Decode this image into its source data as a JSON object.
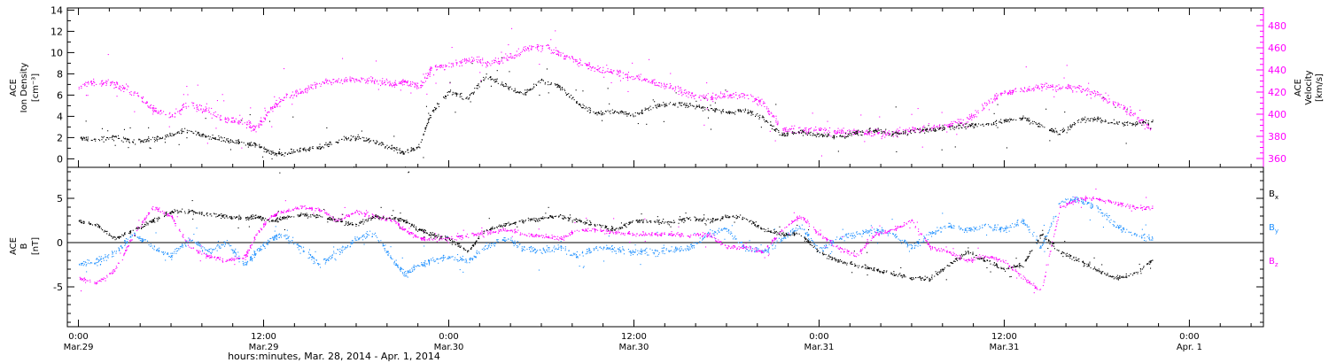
{
  "xaxis": {
    "ticks": [
      {
        "t": 0.0,
        "time": "0:00",
        "date": "Mar.29"
      },
      {
        "t": 0.5,
        "time": "12:00",
        "date": "Mar.29"
      },
      {
        "t": 1.0,
        "time": "0:00",
        "date": "Mar.30"
      },
      {
        "t": 1.5,
        "time": "12:00",
        "date": "Mar.30"
      },
      {
        "t": 2.0,
        "time": "0:00",
        "date": "Mar.31"
      },
      {
        "t": 2.5,
        "time": "12:00",
        "date": "Mar.31"
      },
      {
        "t": 3.0,
        "time": "0:00",
        "date": "Apr. 1"
      }
    ],
    "label": "hours:minutes, Mar. 28, 2014 - Apr.  1, 2014"
  },
  "chart_data": [
    {
      "type": "scatter",
      "panel": "top",
      "xlim": [
        -0.03,
        3.2
      ],
      "x_units": "days since Mar.29 0:00",
      "ylabel_lines": [
        "ACE",
        "Ion Density",
        "[cm⁻³]"
      ],
      "ylim": [
        -0.8,
        14.2
      ],
      "yticks": [
        0,
        2,
        4,
        6,
        8,
        10,
        12,
        14
      ],
      "y2label_lines": [
        "ACE",
        "Velocity",
        "[km/s]"
      ],
      "y2lim": [
        352,
        496
      ],
      "y2ticks": [
        360,
        380,
        400,
        420,
        440,
        460,
        480
      ],
      "series": [
        {
          "name": "Density",
          "color": "#000000",
          "axis": "left",
          "x": [
            0.0,
            0.05,
            0.1,
            0.15,
            0.2,
            0.25,
            0.3,
            0.35,
            0.4,
            0.45,
            0.48,
            0.52,
            0.55,
            0.6,
            0.65,
            0.7,
            0.75,
            0.8,
            0.85,
            0.88,
            0.92,
            0.95,
            1.0,
            1.05,
            1.1,
            1.15,
            1.2,
            1.25,
            1.3,
            1.35,
            1.4,
            1.45,
            1.5,
            1.55,
            1.6,
            1.65,
            1.7,
            1.75,
            1.8,
            1.85,
            1.9,
            1.95,
            2.0,
            2.05,
            2.1,
            2.15,
            2.2,
            2.25,
            2.3,
            2.35,
            2.4,
            2.45,
            2.5,
            2.55,
            2.6,
            2.65,
            2.7,
            2.75,
            2.8,
            2.85,
            2.9
          ],
          "y": [
            2.0,
            1.9,
            2.1,
            1.6,
            1.9,
            2.3,
            2.7,
            2.1,
            1.8,
            1.5,
            1.4,
            0.6,
            0.5,
            0.9,
            1.1,
            1.7,
            2.1,
            1.6,
            1.0,
            0.6,
            1.2,
            4.2,
            6.4,
            5.7,
            7.8,
            7.0,
            6.1,
            7.4,
            6.8,
            5.2,
            4.3,
            4.5,
            4.2,
            4.9,
            5.2,
            5.1,
            4.8,
            4.4,
            4.6,
            3.8,
            2.3,
            2.6,
            2.3,
            2.1,
            2.5,
            2.7,
            2.4,
            2.6,
            2.8,
            3.0,
            3.2,
            3.3,
            3.6,
            3.9,
            3.1,
            2.4,
            3.6,
            3.8,
            3.4,
            3.3,
            3.6
          ]
        },
        {
          "name": "Velocity",
          "color": "#ff00ff",
          "axis": "right",
          "x": [
            0.0,
            0.05,
            0.1,
            0.15,
            0.2,
            0.25,
            0.3,
            0.35,
            0.4,
            0.45,
            0.48,
            0.52,
            0.55,
            0.6,
            0.65,
            0.7,
            0.75,
            0.8,
            0.85,
            0.88,
            0.92,
            0.95,
            1.0,
            1.05,
            1.1,
            1.15,
            1.2,
            1.25,
            1.3,
            1.35,
            1.4,
            1.45,
            1.5,
            1.55,
            1.6,
            1.65,
            1.7,
            1.75,
            1.8,
            1.85,
            1.9,
            1.95,
            2.0,
            2.05,
            2.1,
            2.15,
            2.2,
            2.25,
            2.3,
            2.35,
            2.4,
            2.45,
            2.5,
            2.55,
            2.6,
            2.65,
            2.7,
            2.75,
            2.8,
            2.85,
            2.9
          ],
          "y": [
            425,
            430,
            427,
            420,
            405,
            398,
            410,
            403,
            395,
            392,
            388,
            405,
            415,
            420,
            428,
            430,
            432,
            430,
            428,
            430,
            425,
            440,
            445,
            450,
            447,
            450,
            458,
            463,
            455,
            447,
            441,
            438,
            434,
            430,
            425,
            418,
            415,
            418,
            417,
            410,
            387,
            386,
            386,
            385,
            384,
            383,
            383,
            386,
            388,
            390,
            395,
            410,
            420,
            422,
            425,
            425,
            424,
            418,
            410,
            400,
            385
          ]
        }
      ]
    },
    {
      "type": "scatter",
      "panel": "bottom",
      "xlim": [
        -0.03,
        3.2
      ],
      "x_units": "days since Mar.29 0:00",
      "ylabel_lines": [
        "ACE",
        "B",
        "[nT]"
      ],
      "ylim": [
        -9.5,
        8.5
      ],
      "yticks": [
        -5,
        0,
        5
      ],
      "zero_line": true,
      "series": [
        {
          "name": "Bx",
          "label": "B",
          "sub": "x",
          "color": "#000000",
          "x": [
            0.0,
            0.05,
            0.1,
            0.15,
            0.2,
            0.25,
            0.3,
            0.35,
            0.4,
            0.45,
            0.48,
            0.52,
            0.55,
            0.6,
            0.65,
            0.7,
            0.75,
            0.8,
            0.85,
            0.88,
            0.92,
            0.95,
            1.0,
            1.05,
            1.1,
            1.15,
            1.2,
            1.25,
            1.3,
            1.35,
            1.4,
            1.45,
            1.5,
            1.55,
            1.6,
            1.65,
            1.7,
            1.75,
            1.8,
            1.85,
            1.9,
            1.95,
            2.0,
            2.05,
            2.1,
            2.15,
            2.2,
            2.25,
            2.3,
            2.35,
            2.4,
            2.45,
            2.5,
            2.55,
            2.6,
            2.65,
            2.7,
            2.75,
            2.8,
            2.85,
            2.9
          ],
          "y": [
            2.5,
            2.0,
            0.5,
            1.5,
            2.5,
            3.5,
            3.6,
            3.2,
            3.0,
            2.8,
            3.0,
            2.5,
            2.8,
            3.2,
            3.0,
            2.5,
            2.0,
            3.0,
            2.8,
            2.5,
            1.5,
            1.0,
            0.5,
            -1.0,
            1.5,
            2.0,
            2.5,
            2.8,
            3.0,
            2.5,
            2.0,
            1.5,
            2.5,
            2.5,
            2.3,
            2.8,
            2.5,
            3.0,
            2.8,
            1.5,
            1.0,
            1.0,
            -1.0,
            -2.0,
            -2.5,
            -3.0,
            -3.5,
            -4.0,
            -4.0,
            -2.5,
            -1.0,
            -2.0,
            -3.0,
            -2.5,
            1.0,
            -1.0,
            -2.0,
            -3.0,
            -4.0,
            -3.5,
            -2.0
          ]
        },
        {
          "name": "By",
          "label": "B",
          "sub": "y",
          "color": "#1e90ff",
          "x": [
            0.0,
            0.05,
            0.1,
            0.15,
            0.2,
            0.25,
            0.3,
            0.35,
            0.4,
            0.45,
            0.48,
            0.52,
            0.55,
            0.6,
            0.65,
            0.7,
            0.75,
            0.8,
            0.85,
            0.88,
            0.92,
            0.95,
            1.0,
            1.05,
            1.1,
            1.15,
            1.2,
            1.25,
            1.3,
            1.35,
            1.4,
            1.45,
            1.5,
            1.55,
            1.6,
            1.65,
            1.7,
            1.75,
            1.8,
            1.85,
            1.9,
            1.95,
            2.0,
            2.05,
            2.1,
            2.15,
            2.2,
            2.25,
            2.3,
            2.35,
            2.4,
            2.45,
            2.5,
            2.55,
            2.6,
            2.65,
            2.7,
            2.75,
            2.8,
            2.85,
            2.9
          ],
          "y": [
            -2.5,
            -2.0,
            -1.0,
            1.0,
            -0.5,
            -1.5,
            0.5,
            -1.0,
            0.0,
            -2.5,
            -1.0,
            0.5,
            1.0,
            -0.5,
            -2.5,
            -1.0,
            0.5,
            1.0,
            -2.0,
            -3.5,
            -2.5,
            -2.0,
            -1.5,
            -2.0,
            -0.5,
            0.5,
            -0.5,
            -1.0,
            -0.5,
            -1.5,
            -0.5,
            -0.8,
            -1.0,
            -1.0,
            -0.8,
            -0.5,
            1.0,
            1.5,
            -0.5,
            -1.0,
            0.5,
            2.0,
            -1.0,
            0.5,
            1.0,
            1.5,
            1.0,
            -0.5,
            1.0,
            2.0,
            1.5,
            2.0,
            1.5,
            2.5,
            -0.5,
            4.5,
            5.0,
            4.0,
            2.0,
            1.0,
            0.5
          ]
        },
        {
          "name": "Bz",
          "label": "B",
          "sub": "z",
          "color": "#ff00ff",
          "x": [
            0.0,
            0.05,
            0.1,
            0.15,
            0.2,
            0.25,
            0.3,
            0.35,
            0.4,
            0.45,
            0.48,
            0.52,
            0.55,
            0.6,
            0.65,
            0.7,
            0.75,
            0.8,
            0.85,
            0.88,
            0.92,
            0.95,
            1.0,
            1.05,
            1.1,
            1.15,
            1.2,
            1.25,
            1.3,
            1.35,
            1.4,
            1.45,
            1.5,
            1.55,
            1.6,
            1.65,
            1.7,
            1.75,
            1.8,
            1.85,
            1.9,
            1.95,
            2.0,
            2.05,
            2.1,
            2.15,
            2.2,
            2.25,
            2.3,
            2.35,
            2.4,
            2.45,
            2.5,
            2.55,
            2.6,
            2.65,
            2.7,
            2.75,
            2.8,
            2.85,
            2.9
          ],
          "y": [
            -4.0,
            -4.5,
            -3.0,
            1.0,
            4.0,
            3.0,
            -0.5,
            -1.5,
            -2.0,
            -1.5,
            1.0,
            3.0,
            3.5,
            4.0,
            3.8,
            2.5,
            3.5,
            3.0,
            2.5,
            1.5,
            0.5,
            0.5,
            0.5,
            0.8,
            1.2,
            1.5,
            1.0,
            0.8,
            0.5,
            1.5,
            1.5,
            1.2,
            1.0,
            1.0,
            1.0,
            0.8,
            1.0,
            -0.5,
            -0.5,
            -1.0,
            1.5,
            3.0,
            1.0,
            -0.5,
            -1.5,
            1.0,
            1.5,
            2.5,
            -0.5,
            -1.0,
            -2.0,
            -1.5,
            -2.0,
            -4.0,
            -5.5,
            4.0,
            5.0,
            5.0,
            4.5,
            4.0,
            4.0
          ]
        }
      ]
    }
  ]
}
